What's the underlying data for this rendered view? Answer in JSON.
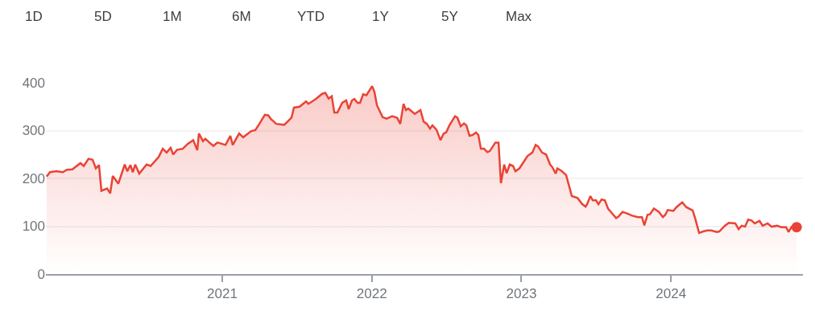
{
  "chart_data": {
    "type": "area",
    "annotations": [
      "1D",
      "5D",
      "1M",
      "6M",
      "YTD",
      "1Y",
      "5Y",
      "Max"
    ],
    "xlim": [
      2019.821,
      2024.882
    ],
    "xticks": [
      {
        "value": 2021,
        "label": "2021"
      },
      {
        "value": 2022,
        "label": "2022"
      },
      {
        "value": 2023,
        "label": "2023"
      },
      {
        "value": 2024,
        "label": "2024"
      }
    ],
    "ylim": [
      0,
      400
    ],
    "yticks": [
      0,
      100,
      200,
      300,
      400
    ],
    "grid": "y",
    "series": [
      {
        "color": "#ea4335",
        "x": [
          2019.826,
          2019.848,
          2019.891,
          2019.934,
          2019.961,
          2019.998,
          2020.052,
          2020.074,
          2020.106,
          2020.133,
          2020.155,
          2020.176,
          2020.192,
          2020.23,
          2020.251,
          2020.268,
          2020.305,
          2020.348,
          2020.365,
          2020.386,
          2020.402,
          2020.418,
          2020.445,
          2020.494,
          2020.521,
          2020.575,
          2020.602,
          2020.628,
          2020.655,
          2020.672,
          2020.698,
          2020.736,
          2020.768,
          2020.806,
          2020.833,
          2020.844,
          2020.871,
          2020.887,
          2020.914,
          2020.941,
          2020.968,
          2021.022,
          2021.054,
          2021.07,
          2021.113,
          2021.14,
          2021.194,
          2021.221,
          2021.248,
          2021.285,
          2021.307,
          2021.328,
          2021.334,
          2021.361,
          2021.415,
          2021.463,
          2021.479,
          2021.517,
          2021.56,
          2021.576,
          2021.625,
          2021.668,
          2021.689,
          2021.711,
          2021.732,
          2021.749,
          2021.77,
          2021.802,
          2021.829,
          2021.845,
          2021.867,
          2021.883,
          2021.905,
          2021.921,
          2021.942,
          2021.964,
          2022.002,
          2022.018,
          2022.034,
          2022.072,
          2022.099,
          2022.136,
          2022.169,
          2022.19,
          2022.212,
          2022.228,
          2022.244,
          2022.287,
          2022.325,
          2022.346,
          2022.368,
          2022.389,
          2022.405,
          2022.432,
          2022.459,
          2022.481,
          2022.497,
          2022.519,
          2022.556,
          2022.572,
          2022.594,
          2022.616,
          2022.632,
          2022.653,
          2022.675,
          2022.696,
          2022.712,
          2022.729,
          2022.75,
          2022.772,
          2022.788,
          2022.826,
          2022.847,
          2022.863,
          2022.885,
          2022.901,
          2022.922,
          2022.944,
          2022.96,
          2022.987,
          2023.014,
          2023.041,
          2023.073,
          2023.095,
          2023.111,
          2023.138,
          2023.165,
          2023.192,
          2023.208,
          2023.229,
          2023.24,
          2023.267,
          2023.299,
          2023.337,
          2023.375,
          2023.407,
          2023.429,
          2023.439,
          2023.461,
          2023.477,
          2023.499,
          2023.515,
          2023.536,
          2023.558,
          2023.579,
          2023.606,
          2023.633,
          2023.649,
          2023.676,
          2023.703,
          2023.741,
          2023.779,
          2023.806,
          2023.822,
          2023.843,
          2023.859,
          2023.886,
          2023.919,
          2023.946,
          2023.962,
          2023.978,
          2024.016,
          2024.037,
          2024.075,
          2024.102,
          2024.145,
          2024.161,
          2024.188,
          2024.215,
          2024.242,
          2024.269,
          2024.306,
          2024.323,
          2024.36,
          2024.387,
          2024.43,
          2024.452,
          2024.473,
          2024.495,
          2024.516,
          2024.538,
          2024.56,
          2024.592,
          2024.613,
          2024.646,
          2024.673,
          2024.71,
          2024.737,
          2024.77,
          2024.786,
          2024.807,
          2024.84
        ],
        "values": [
          204,
          213,
          215,
          213,
          218,
          219,
          232,
          226,
          241,
          239,
          221,
          228,
          174,
          179,
          169,
          205,
          189,
          229,
          215,
          228,
          213,
          229,
          210,
          229,
          226,
          245,
          262,
          254,
          264,
          250,
          260,
          262,
          272,
          280,
          259,
          294,
          278,
          283,
          275,
          268,
          275,
          270,
          289,
          270,
          294,
          286,
          299,
          301,
          314,
          333,
          332,
          323,
          322,
          314,
          312,
          327,
          348,
          350,
          361,
          356,
          366,
          377,
          379,
          367,
          372,
          338,
          338,
          358,
          363,
          345,
          363,
          366,
          358,
          358,
          376,
          374,
          393,
          380,
          353,
          328,
          325,
          330,
          327,
          314,
          356,
          343,
          346,
          335,
          343,
          319,
          314,
          304,
          311,
          302,
          280,
          294,
          296,
          311,
          330,
          327,
          309,
          315,
          311,
          289,
          291,
          296,
          291,
          262,
          262,
          255,
          257,
          275,
          275,
          190,
          229,
          211,
          229,
          226,
          215,
          221,
          234,
          247,
          254,
          270,
          267,
          254,
          250,
          229,
          223,
          210,
          221,
          216,
          207,
          163,
          159,
          146,
          141,
          146,
          163,
          154,
          154,
          146,
          156,
          154,
          137,
          127,
          117,
          120,
          130,
          127,
          122,
          119,
          119,
          102,
          124,
          125,
          137,
          130,
          119,
          124,
          134,
          132,
          140,
          150,
          140,
          133,
          117,
          86,
          89,
          91,
          91,
          88,
          89,
          101,
          107,
          106,
          94,
          101,
          99,
          114,
          112,
          106,
          111,
          101,
          106,
          99,
          101,
          98,
          98,
          88,
          99,
          98
        ]
      },
      {
        "type": "scatter",
        "marker": "circle",
        "color": "#ea4335",
        "x": [
          2024.84
        ],
        "values": [
          98
        ]
      }
    ]
  }
}
